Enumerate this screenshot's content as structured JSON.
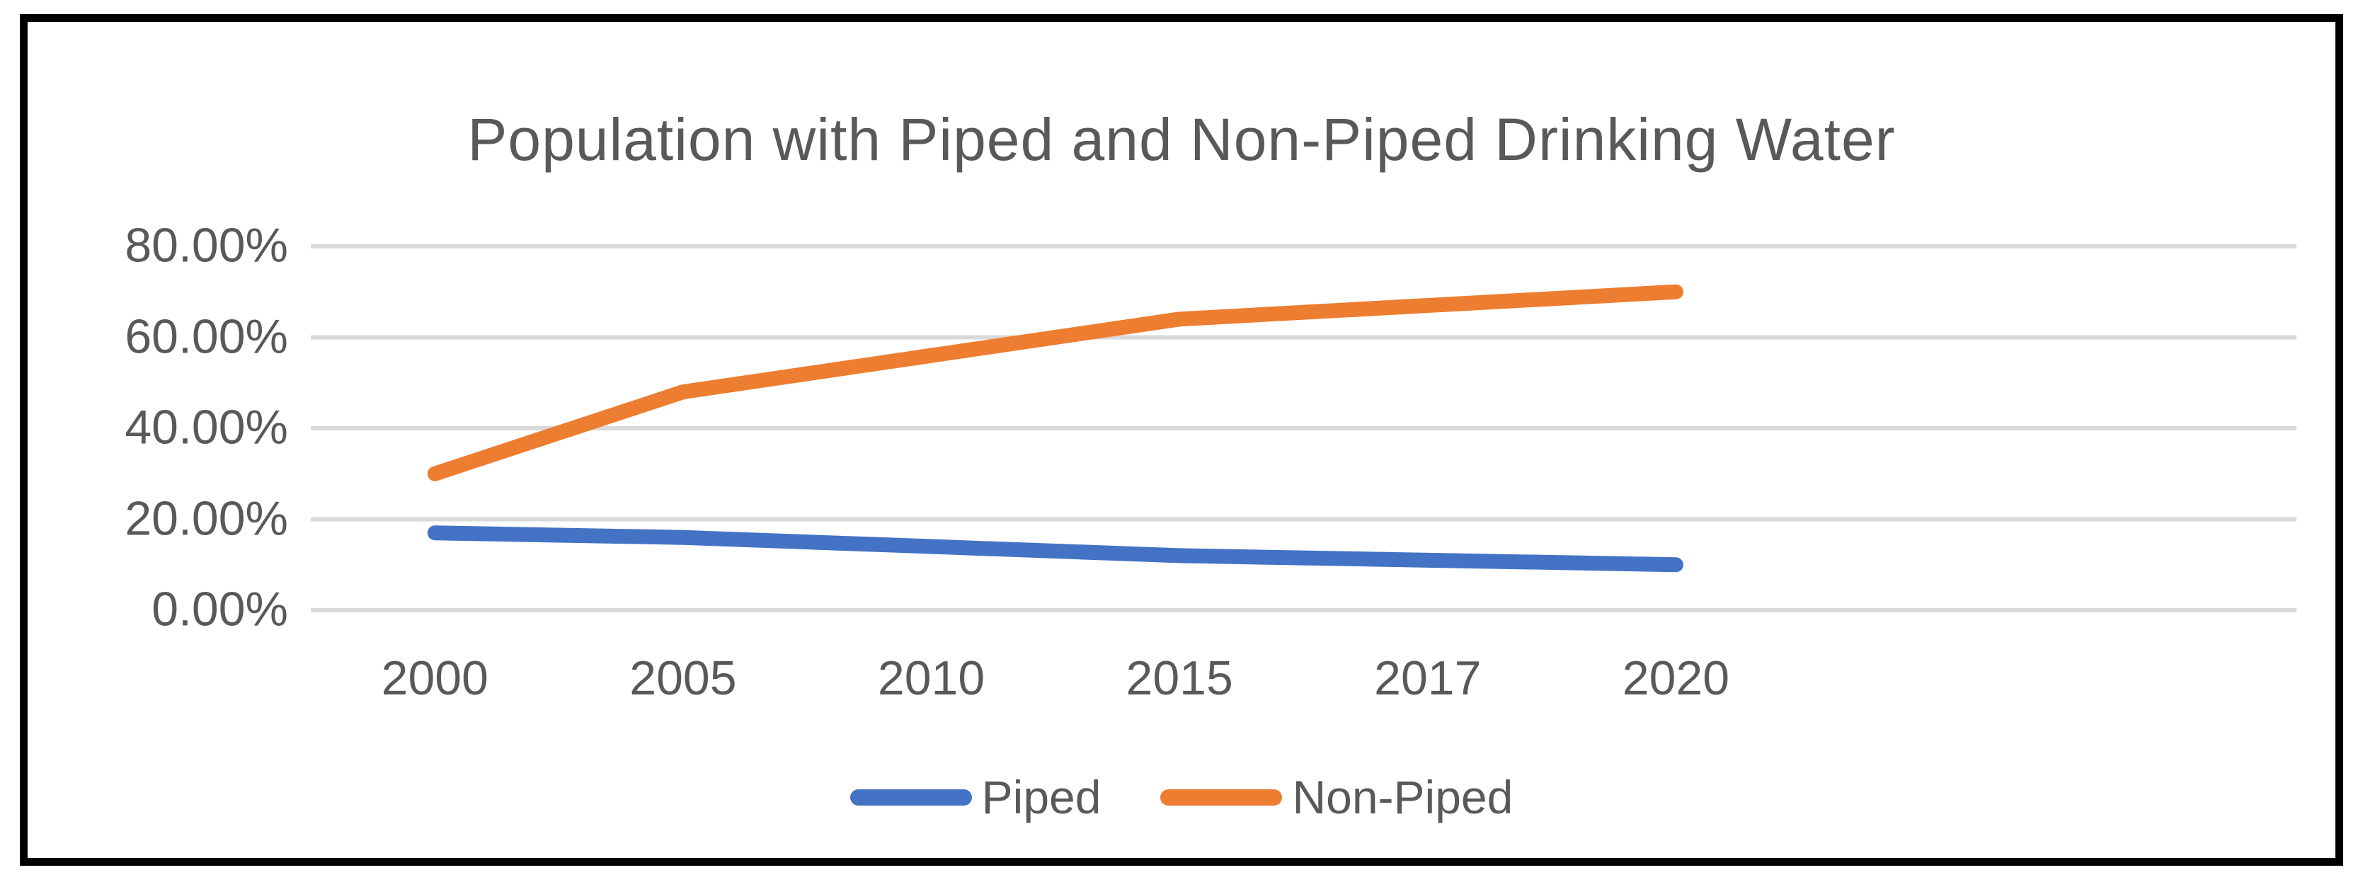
{
  "chart_data": {
    "type": "line",
    "title": "Population with Piped and Non-Piped Drinking Water",
    "categories": [
      "2000",
      "2005",
      "2010",
      "2015",
      "2017",
      "2020"
    ],
    "series": [
      {
        "name": "Piped",
        "color": "#4472C4",
        "values": [
          17,
          16,
          14,
          12,
          11,
          10
        ]
      },
      {
        "name": "Non-Piped",
        "color": "#ED7D31",
        "values": [
          30,
          48,
          56,
          64,
          67,
          70
        ]
      }
    ],
    "y_axis": {
      "tick_labels": [
        "0.00%",
        "20.00%",
        "40.00%",
        "60.00%",
        "80.00%"
      ],
      "tick_values": [
        0,
        20,
        40,
        60,
        80
      ],
      "min": 0,
      "max": 80,
      "format": "percent"
    },
    "x_axis": {
      "type": "category"
    },
    "grid": "horizontal",
    "legend_position": "bottom",
    "colors": {
      "text": "#595959",
      "gridline": "#D9D9D9",
      "frame_border": "#000000",
      "background": "#FFFFFF"
    }
  }
}
